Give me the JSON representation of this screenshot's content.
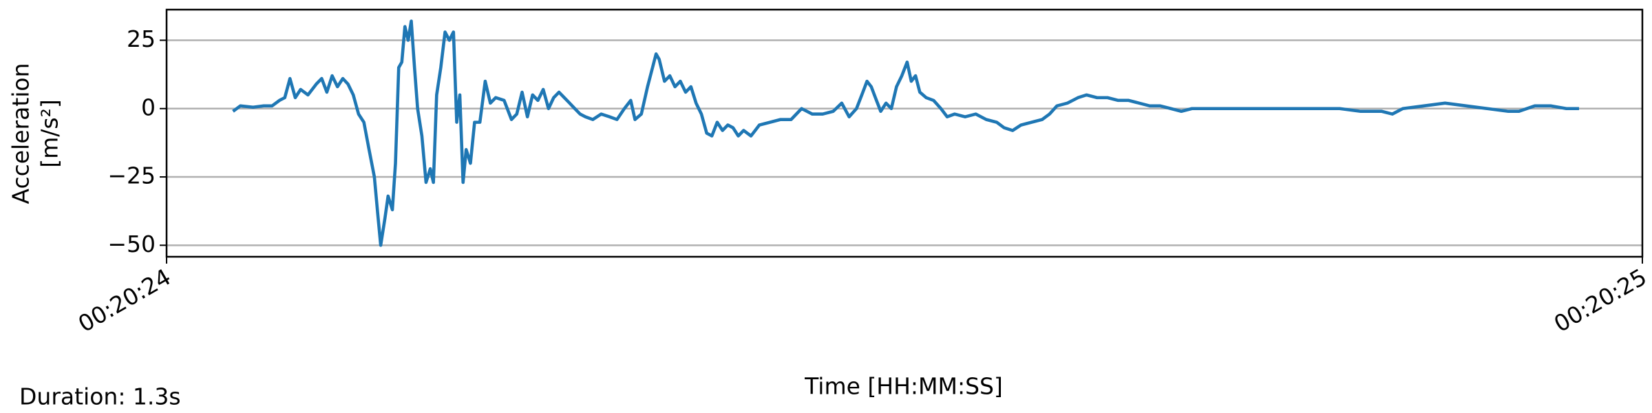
{
  "chart_data": {
    "type": "line",
    "ylabel": [
      "Acceleration",
      "[m/s²]"
    ],
    "xlabel": "Time [HH:MM:SS]",
    "annotation": "Duration: 1.3s",
    "grid": true,
    "xlim": [
      1224,
      1225
    ],
    "xticks": [
      {
        "value": 1224,
        "label": "00:20:24"
      },
      {
        "value": 1225,
        "label": "00:20:25"
      }
    ],
    "ylim": [
      -54.2,
      36.2
    ],
    "yticks": [
      {
        "value": -50,
        "label": "−50"
      },
      {
        "value": -25,
        "label": "−25"
      },
      0,
      25
    ],
    "x": [
      1224.045,
      1224.05,
      1224.0586,
      1224.0658,
      1224.0715,
      1224.0765,
      1224.0801,
      1224.0836,
      1224.0872,
      1224.0908,
      1224.0958,
      1224.1015,
      1224.1051,
      1224.1086,
      1224.1122,
      1224.1158,
      1224.1194,
      1224.1229,
      1224.1265,
      1224.1301,
      1224.1337,
      1224.1372,
      1224.1408,
      1224.143,
      1224.1451,
      1224.148,
      1224.1501,
      1224.153,
      1224.1551,
      1224.1573,
      1224.1594,
      1224.1615,
      1224.1637,
      1224.1658,
      1224.168,
      1224.1701,
      1224.173,
      1224.1758,
      1224.1787,
      1224.1808,
      1224.183,
      1224.1858,
      1224.1887,
      1224.1916,
      1224.1944,
      1224.1966,
      1224.1987,
      1224.2009,
      1224.203,
      1224.2059,
      1224.2087,
      1224.2123,
      1224.2159,
      1224.2194,
      1224.223,
      1224.2287,
      1224.2337,
      1224.2373,
      1224.2409,
      1224.2445,
      1224.248,
      1224.2516,
      1224.2552,
      1224.2588,
      1224.2623,
      1224.2659,
      1224.2695,
      1224.2731,
      1224.2766,
      1224.2802,
      1224.2838,
      1224.2888,
      1224.2945,
      1224.3002,
      1224.3052,
      1224.3102,
      1224.3145,
      1224.3174,
      1224.3217,
      1224.3259,
      1224.3288,
      1224.3317,
      1224.3338,
      1224.3374,
      1224.341,
      1224.3445,
      1224.3481,
      1224.3517,
      1224.3553,
      1224.3588,
      1224.3624,
      1224.366,
      1224.3695,
      1224.3731,
      1224.3767,
      1224.3803,
      1224.3838,
      1224.3874,
      1224.391,
      1224.396,
      1224.4017,
      1224.4089,
      1224.416,
      1224.4232,
      1224.4303,
      1224.4375,
      1224.4446,
      1224.4517,
      1224.4575,
      1224.4625,
      1224.4675,
      1224.4718,
      1224.4746,
      1224.4775,
      1224.4803,
      1224.4839,
      1224.4875,
      1224.4911,
      1224.4946,
      1224.4982,
      1224.5018,
      1224.5046,
      1224.5075,
      1224.5104,
      1224.5147,
      1224.5197,
      1224.5247,
      1224.5289,
      1224.534,
      1224.5411,
      1224.5483,
      1224.5554,
      1224.5625,
      1224.5675,
      1224.5733,
      1224.579,
      1224.5861,
      1224.5933,
      1224.5983,
      1224.6033,
      1224.6104,
      1224.6176,
      1224.6233,
      1224.6305,
      1224.6376,
      1224.6448,
      1224.6519,
      1224.659,
      1224.6662,
      1224.6733,
      1224.6805,
      1224.6876,
      1224.6948,
      1224.7091,
      1224.7234,
      1224.7377,
      1224.752,
      1224.7663,
      1224.7806,
      1224.7949,
      1224.8091,
      1224.8234,
      1224.8306,
      1224.8377,
      1224.852,
      1224.8663,
      1224.8806,
      1224.8949,
      1224.9092,
      1224.9164,
      1224.9271,
      1224.9378,
      1224.9485,
      1224.9571
    ],
    "series": [
      {
        "color": "#1f77b4",
        "values": [
          -1,
          1,
          0.5,
          1,
          1,
          3,
          4,
          11,
          4,
          7,
          5,
          9,
          11,
          6,
          12,
          8,
          11,
          9,
          5,
          -2,
          -5,
          -15,
          -25,
          -38,
          -50,
          -40,
          -32,
          -37,
          -20,
          15,
          17,
          30,
          25,
          32,
          15,
          0,
          -10,
          -27,
          -22,
          -27,
          5,
          15,
          28,
          25,
          28,
          -5,
          5,
          -27,
          -15,
          -20,
          -5,
          -5,
          10,
          2,
          4,
          3,
          -4,
          -2,
          6,
          -3,
          5,
          3,
          7,
          0,
          4,
          6,
          4,
          2,
          0,
          -2,
          -3,
          -4,
          -2,
          -3,
          -4,
          0,
          3,
          -4,
          -2,
          8,
          14,
          20,
          18,
          10,
          12,
          8,
          10,
          6,
          8,
          2,
          -2,
          -9,
          -10,
          -5,
          -8,
          -6,
          -7,
          -10,
          -8,
          -10,
          -6,
          -5,
          -4,
          -4,
          0,
          -2,
          -2,
          -1,
          2,
          -3,
          0,
          6,
          10,
          8,
          4,
          -1,
          2,
          0,
          8,
          12,
          17,
          10,
          12,
          6,
          4,
          3,
          0,
          -3,
          -2,
          -3,
          -2,
          -4,
          -5,
          -7,
          -8,
          -6,
          -5,
          -4,
          -2,
          1,
          2,
          4,
          5,
          4,
          4,
          3,
          3,
          2,
          1,
          1,
          0,
          -1,
          0,
          0,
          0,
          0,
          0,
          0,
          0,
          0,
          -1,
          -1,
          -2,
          0,
          1,
          2,
          1,
          0,
          -1,
          -1,
          1,
          1,
          0,
          0
        ]
      }
    ]
  }
}
